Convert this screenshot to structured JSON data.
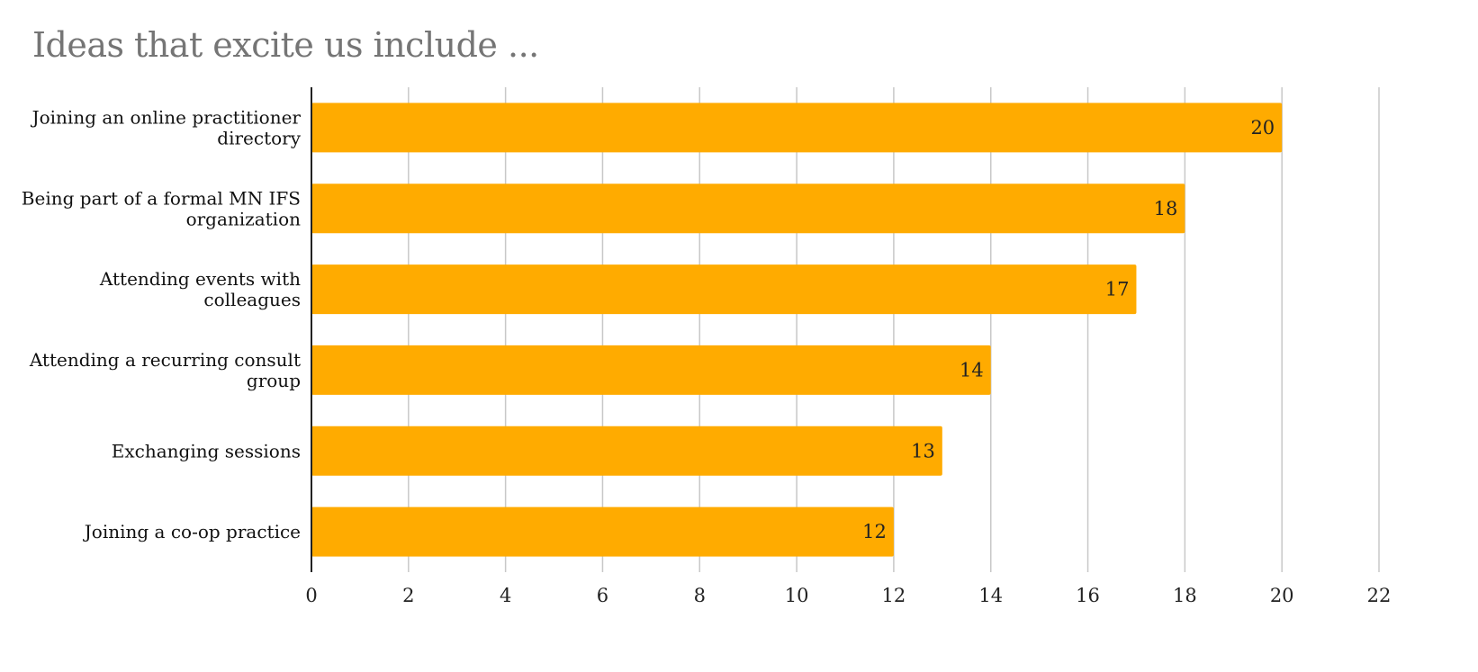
{
  "chart_data": {
    "type": "bar",
    "orientation": "horizontal",
    "title": "Ideas that excite us include ...",
    "xlabel": "",
    "ylabel": "",
    "categories": [
      [
        "Joining an online practitioner",
        "directory"
      ],
      [
        "Being part of a formal MN IFS",
        "organization"
      ],
      [
        "Attending events with",
        "colleagues"
      ],
      [
        "Attending a recurring consult",
        "group"
      ],
      [
        "Exchanging sessions"
      ],
      [
        "Joining a co-op practice"
      ]
    ],
    "values": [
      20,
      18,
      17,
      14,
      13,
      12
    ],
    "data_labels": [
      "20",
      "18",
      "17",
      "14",
      "13",
      "12"
    ],
    "xlim": [
      0,
      22
    ],
    "xticks": [
      "0",
      "2",
      "4",
      "6",
      "8",
      "10",
      "12",
      "14",
      "16",
      "18",
      "20",
      "22"
    ],
    "grid": true,
    "legend": "none",
    "bar_color": "#FFAB00"
  }
}
